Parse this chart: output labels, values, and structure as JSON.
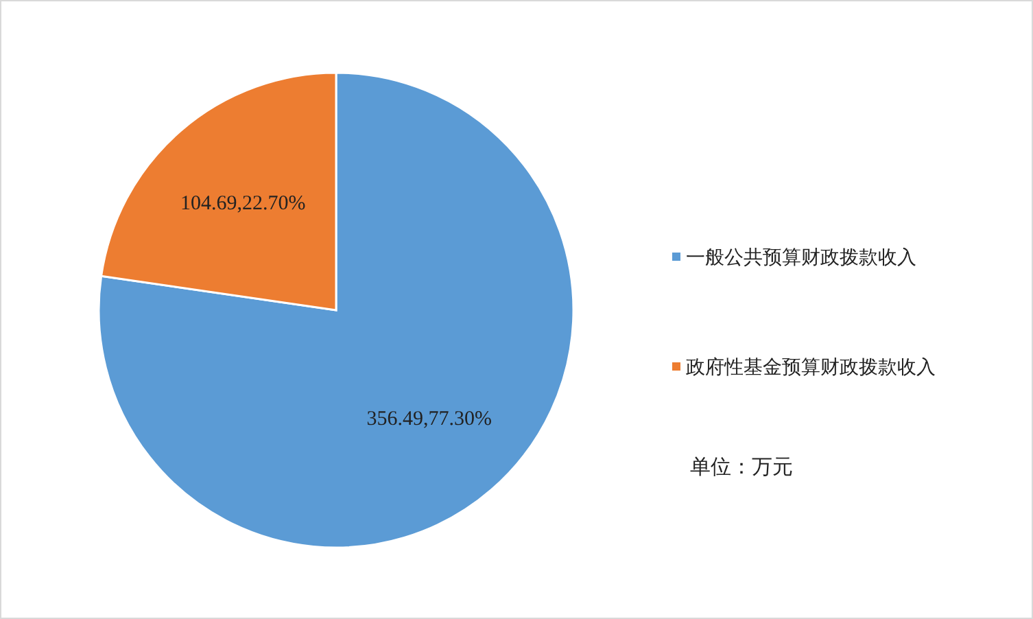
{
  "chart_data": {
    "type": "pie",
    "categories": [
      "一般公共预算财政拨款收入",
      "政府性基金预算财政拨款收入"
    ],
    "values": [
      77.3,
      22.7
    ],
    "colors": [
      "#5b9bd5",
      "#ed7d31"
    ],
    "value_labels": [
      "356.49,77.30%",
      "104.69,22.70%"
    ],
    "legend": "right",
    "annotations": [
      "单位：万元"
    ]
  }
}
